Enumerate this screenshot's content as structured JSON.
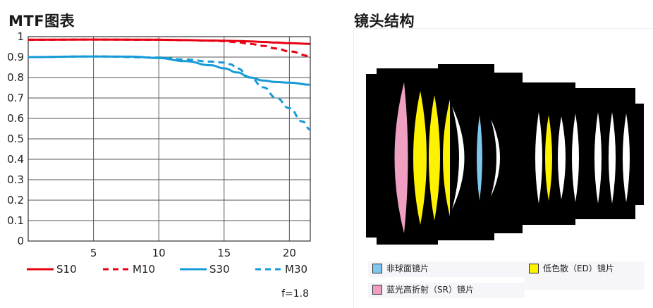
{
  "mtf_title": "MTF图表",
  "lens_title": "镜头结构",
  "aperture_note": "f=1.8",
  "chart_data": {
    "type": "line",
    "title": "MTF图表",
    "xlabel": "",
    "ylabel": "",
    "xlim": [
      0,
      21.6
    ],
    "ylim": [
      0,
      1
    ],
    "grid": true,
    "legend": "bottom",
    "x_ticks": [
      5,
      10,
      15,
      20
    ],
    "y_ticks": [
      0,
      0.1,
      0.2,
      0.3,
      0.4,
      0.5,
      0.6,
      0.7,
      0.8,
      0.9,
      1
    ],
    "y_tick_labels": [
      "0",
      "0.1",
      "0.2",
      "0.3",
      "0.4",
      "0.5",
      "0.6",
      "0.7",
      "0.8",
      "0.9",
      "1"
    ],
    "series": [
      {
        "name": "S10",
        "color": "#e60012",
        "dash": "solid",
        "x": [
          0,
          5,
          10,
          12,
          14,
          15,
          16,
          17,
          18,
          19,
          20,
          21.6
        ],
        "y": [
          0.985,
          0.986,
          0.985,
          0.983,
          0.981,
          0.98,
          0.979,
          0.977,
          0.974,
          0.971,
          0.968,
          0.965
        ]
      },
      {
        "name": "M10",
        "color": "#e60012",
        "dash": "dashed",
        "x": [
          0,
          5,
          10,
          12,
          14,
          15,
          16,
          17,
          18,
          19,
          20,
          21.6
        ],
        "y": [
          0.985,
          0.986,
          0.985,
          0.983,
          0.98,
          0.978,
          0.973,
          0.965,
          0.955,
          0.942,
          0.928,
          0.905
        ]
      },
      {
        "name": "S30",
        "color": "#169ad8",
        "dash": "solid",
        "x": [
          0,
          5,
          8,
          10,
          12,
          14,
          15,
          16,
          17,
          18,
          19,
          20,
          21.6
        ],
        "y": [
          0.9,
          0.903,
          0.902,
          0.895,
          0.88,
          0.86,
          0.845,
          0.825,
          0.8,
          0.785,
          0.778,
          0.775,
          0.765
        ]
      },
      {
        "name": "M30",
        "color": "#169ad8",
        "dash": "dashed",
        "x": [
          0,
          5,
          10,
          12,
          14,
          15,
          15.5,
          16,
          17,
          18,
          19,
          20,
          21,
          21.6
        ],
        "y": [
          0.9,
          0.903,
          0.898,
          0.888,
          0.878,
          0.873,
          0.865,
          0.845,
          0.8,
          0.752,
          0.7,
          0.65,
          0.585,
          0.545
        ]
      }
    ]
  },
  "lens_legend": {
    "aspherical": {
      "label": "非球面镜片",
      "color": "#7ec7ee"
    },
    "sr": {
      "label": "蓝光高折射（SR）镜片",
      "color": "#ef9fc2"
    },
    "ed": {
      "label": "低色散（ED）镜片",
      "color": "#fff200"
    }
  }
}
